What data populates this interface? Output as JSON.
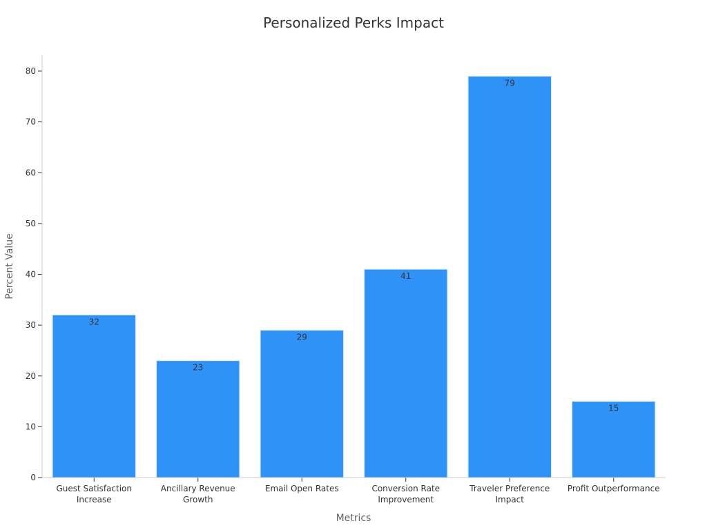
{
  "chart_data": {
    "type": "bar",
    "title": "Personalized Perks Impact",
    "xlabel": "Metrics",
    "ylabel": "Percent Value",
    "categories": [
      [
        "Guest Satisfaction",
        "Increase"
      ],
      [
        "Ancillary Revenue",
        "Growth"
      ],
      [
        "Email Open Rates"
      ],
      [
        "Conversion Rate",
        "Improvement"
      ],
      [
        "Traveler Preference",
        "Impact"
      ],
      [
        "Profit Outperformance"
      ]
    ],
    "values": [
      32,
      23,
      29,
      41,
      79,
      15
    ],
    "ylim": [
      0,
      83.2
    ],
    "yticks": [
      0,
      10,
      20,
      30,
      40,
      50,
      60,
      70,
      80
    ],
    "bar_color": "#2f92f7",
    "grid": false,
    "legend": "none"
  }
}
